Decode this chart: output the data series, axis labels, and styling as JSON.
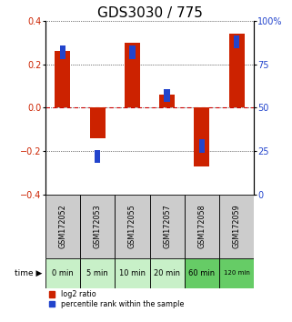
{
  "title": "GDS3030 / 775",
  "samples": [
    "GSM172052",
    "GSM172053",
    "GSM172055",
    "GSM172057",
    "GSM172058",
    "GSM172059"
  ],
  "time_labels": [
    "0 min",
    "5 min",
    "10 min",
    "20 min",
    "60 min",
    "120 min"
  ],
  "log2_ratio": [
    0.26,
    -0.14,
    0.3,
    0.06,
    -0.27,
    0.34
  ],
  "percentile_rank": [
    82,
    22,
    82,
    57,
    28,
    88
  ],
  "ylim_left": [
    -0.4,
    0.4
  ],
  "ylim_right": [
    0,
    100
  ],
  "yticks_left": [
    -0.4,
    -0.2,
    0.0,
    0.2,
    0.4
  ],
  "yticks_right": [
    0,
    25,
    50,
    75,
    100
  ],
  "bar_color_red": "#cc2200",
  "bar_color_blue": "#2244cc",
  "bg_color": "#ffffff",
  "plot_bg": "#ffffff",
  "zero_line_color": "#cc0000",
  "title_fontsize": 11,
  "tick_fontsize": 7,
  "time_row_colors": [
    "#c8f0c8",
    "#c8f0c8",
    "#c8f0c8",
    "#c8f0c8",
    "#66cc66",
    "#66cc66"
  ],
  "sample_row_color": "#cccccc",
  "bar_width": 0.45,
  "blue_square_size": 0.06
}
